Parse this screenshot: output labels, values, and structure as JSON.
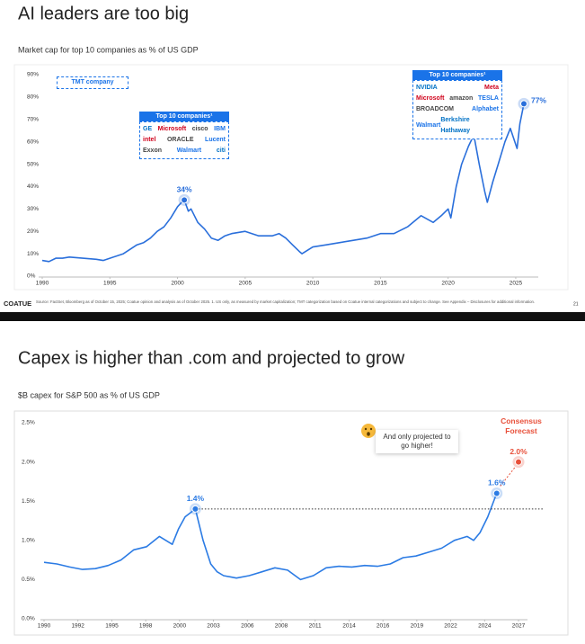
{
  "chart_data": [
    {
      "type": "line",
      "title": "AI leaders are too big",
      "subtitle": "Market cap for top 10 companies as % of US GDP",
      "x": [
        1990,
        1990.5,
        1991,
        1991.5,
        1992,
        1993,
        1994,
        1994.5,
        1995,
        1996,
        1997,
        1997.5,
        1998,
        1998.5,
        1999,
        1999.5,
        2000,
        2000.3,
        2000.5,
        2000.8,
        2001,
        2001.5,
        2002,
        2002.5,
        2003,
        2003.5,
        2004,
        2005,
        2006,
        2007,
        2007.5,
        2008,
        2008.5,
        2009,
        2009.2,
        2010,
        2011,
        2012,
        2013,
        2014,
        2015,
        2016,
        2017,
        2018,
        2018.9,
        2019.5,
        2020,
        2020.2,
        2020.6,
        2021,
        2021.5,
        2021.9,
        2022.3,
        2022.7,
        2022.9,
        2023.3,
        2023.7,
        2024.2,
        2024.6,
        2025.1,
        2025.3,
        2025.6
      ],
      "series": [
        {
          "color": "#2a6fdb",
          "values": [
            7,
            6.5,
            8,
            8,
            8.5,
            8,
            7.5,
            7,
            8,
            10,
            14,
            15,
            17,
            20,
            22,
            26,
            31,
            33,
            34,
            29,
            30,
            24,
            21,
            17,
            16,
            18,
            19,
            20,
            18,
            18,
            19,
            17,
            14,
            11,
            10,
            13,
            14,
            15,
            16,
            17,
            19,
            19,
            22,
            27,
            24,
            27,
            30,
            26,
            40,
            50,
            58,
            63,
            50,
            38,
            33,
            42,
            50,
            60,
            66,
            57,
            68,
            77
          ]
        }
      ],
      "xlim": [
        1990,
        2026
      ],
      "ylim": [
        0,
        90
      ],
      "xticks": [
        1990,
        1995,
        2000,
        2005,
        2010,
        2015,
        2020,
        2025
      ],
      "yticks": [
        {
          "value": 0,
          "label": "0%"
        },
        {
          "value": 10,
          "label": "10%"
        },
        {
          "value": 20,
          "label": "20%"
        },
        {
          "value": 30,
          "label": "30%"
        },
        {
          "value": 40,
          "label": "40%"
        },
        {
          "value": 50,
          "label": "50%"
        },
        {
          "value": 60,
          "label": "60%"
        },
        {
          "value": 70,
          "label": "70%"
        },
        {
          "value": 80,
          "label": "80%"
        },
        {
          "value": 90,
          "label": "90%"
        }
      ],
      "callouts": [
        {
          "x": 2000.5,
          "value": 34,
          "value_label": "34%",
          "color": "#2a6fdb"
        },
        {
          "x": 2025.6,
          "value": 77,
          "value_label": "77%",
          "color": "#2a6fdb"
        }
      ],
      "legend_label": "TMT company",
      "top10_boxes": [
        {
          "title": "Top 10 companies¹",
          "logos": [
            [
              "GE",
              "Microsoft",
              "cisco",
              "IBM"
            ],
            [
              "intel",
              "ORACLE",
              "Lucent"
            ],
            [
              "Exxon",
              "Walmart",
              "citi"
            ]
          ]
        },
        {
          "title": "Top 10 companies¹",
          "logos": [
            [
              "NVIDIA",
              "Meta"
            ],
            [
              "Microsoft",
              "amazon",
              "TESLA"
            ],
            [
              "BROADCOM",
              "Alphabet"
            ],
            [
              "Walmart",
              "Berkshire Hathaway"
            ]
          ]
        }
      ],
      "footer": {
        "brand": "COATUE",
        "source": "Source: FactSet, Bloomberg as of October 15, 2025; Coatue opinion and analysis as of October 2025. 1. US only, as measured by market capitalization; TMT categorization based on Coatue internal categorizations and subject to change. See Appendix – Disclosures for additional information.",
        "page": "21"
      }
    },
    {
      "type": "line",
      "title": "Capex is higher than .com and projected to grow",
      "subtitle": "$B capex for S&P 500 as % of US GDP",
      "x": [
        1990,
        1991,
        1992,
        1993,
        1994,
        1995,
        1996,
        1997,
        1998,
        1999,
        2000,
        2000.5,
        2001,
        2001.8,
        2002.4,
        2003,
        2003.5,
        2004,
        2005,
        2006,
        2007,
        2008,
        2009,
        2010,
        2011,
        2012,
        2013,
        2014,
        2015,
        2016,
        2017,
        2018,
        2019,
        2020,
        2021,
        2022,
        2023,
        2023.5,
        2024,
        2024.6,
        2025.3
      ],
      "series": [
        {
          "color": "#2b7be4",
          "values": [
            0.72,
            0.7,
            0.66,
            0.63,
            0.64,
            0.68,
            0.75,
            0.88,
            0.92,
            1.05,
            0.95,
            1.15,
            1.3,
            1.4,
            1.0,
            0.7,
            0.6,
            0.55,
            0.52,
            0.55,
            0.6,
            0.65,
            0.62,
            0.5,
            0.55,
            0.65,
            0.67,
            0.66,
            0.68,
            0.67,
            0.7,
            0.78,
            0.8,
            0.85,
            0.9,
            1.0,
            1.05,
            1.0,
            1.1,
            1.3,
            1.6
          ]
        }
      ],
      "xlim": [
        1990,
        2027
      ],
      "ylim": [
        0,
        2.5
      ],
      "xticks": [
        1990,
        {
          "value": 1992.64,
          "label": "1992"
        },
        {
          "value": 1995.29,
          "label": "1995"
        },
        {
          "value": 1997.93,
          "label": "1998"
        },
        {
          "value": 2000.57,
          "label": "2000"
        },
        {
          "value": 2003.21,
          "label": "2003"
        },
        {
          "value": 2005.86,
          "label": "2006"
        },
        {
          "value": 2008.5,
          "label": "2008"
        },
        {
          "value": 2011.14,
          "label": "2011"
        },
        {
          "value": 2013.79,
          "label": "2014"
        },
        {
          "value": 2016.43,
          "label": "2016"
        },
        {
          "value": 2019.07,
          "label": "2019"
        },
        {
          "value": 2021.71,
          "label": "2022"
        },
        {
          "value": 2024.36,
          "label": "2024"
        },
        2027
      ],
      "yticks": [
        {
          "value": 0,
          "label": "0.0%"
        },
        {
          "value": 0.5,
          "label": "0.5%"
        },
        {
          "value": 1,
          "label": "1.0%"
        },
        {
          "value": 1.5,
          "label": "1.5%"
        },
        {
          "value": 2,
          "label": "2.0%"
        },
        {
          "value": 2.5,
          "label": "2.5%"
        }
      ],
      "callouts": [
        {
          "x": 2001.8,
          "value": 1.4,
          "value_label": "1.4%",
          "color": "#2b7be4"
        },
        {
          "x": 2025.3,
          "value": 1.6,
          "value_label": "1.6%",
          "color": "#2b7be4"
        },
        {
          "x": 2027,
          "value": 2.0,
          "value_label": "2.0%",
          "color": "#e8503a"
        }
      ],
      "forecast_label": "Consensus Forecast",
      "note": "And only projected to go higher!"
    }
  ]
}
